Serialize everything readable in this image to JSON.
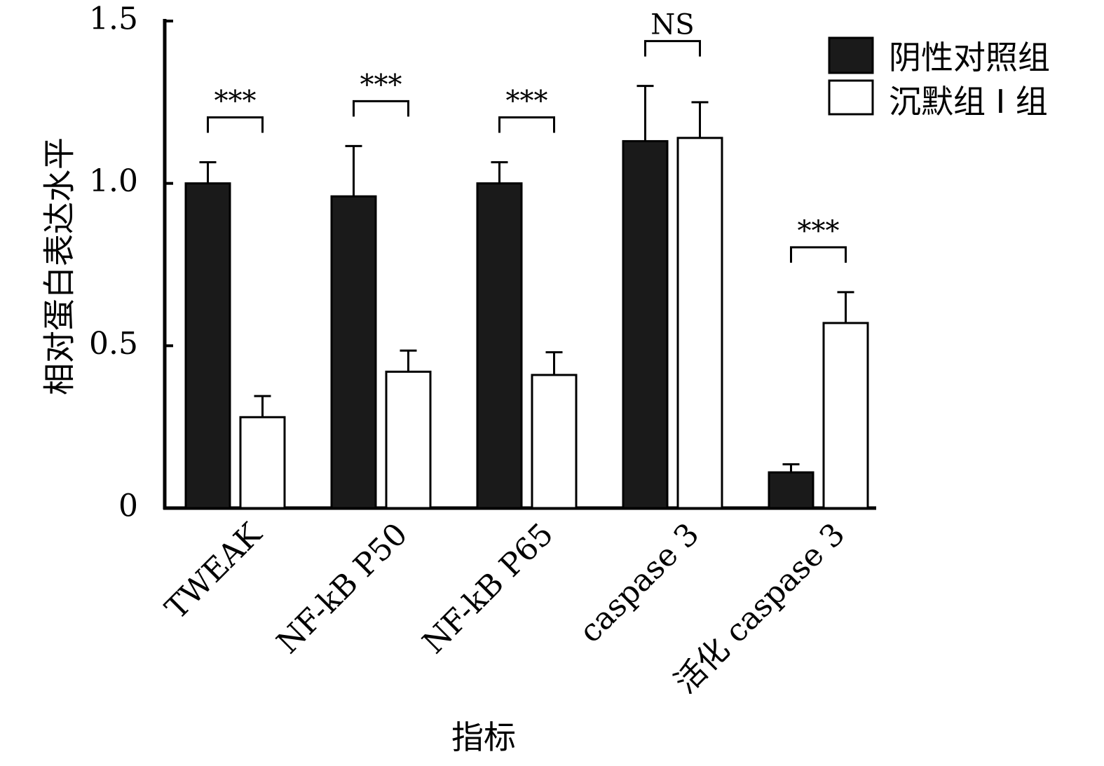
{
  "chart_data": {
    "type": "bar",
    "xlabel": "指标",
    "ylabel": "相对蛋白表达水平",
    "ylim": [
      0,
      1.5
    ],
    "yticks": [
      {
        "value": 0,
        "label": "0"
      },
      {
        "value": 0.5,
        "label": "0.5"
      },
      {
        "value": 1.0,
        "label": "1.0"
      },
      {
        "value": 1.5,
        "label": "1.5"
      }
    ],
    "categories": [
      "TWEAK",
      "NF-kB P50",
      "NF-kB P65",
      "caspase 3",
      "活化 caspase 3"
    ],
    "series": [
      {
        "name": "阴性对照组",
        "color": "#1a1a1a",
        "values": [
          1.0,
          0.96,
          1.0,
          1.13,
          0.11
        ],
        "errors": [
          0.065,
          0.155,
          0.065,
          0.17,
          0.025
        ]
      },
      {
        "name": "沉默组 I 组",
        "color": "#ffffff",
        "values": [
          0.28,
          0.42,
          0.41,
          1.14,
          0.57
        ],
        "errors": [
          0.065,
          0.065,
          0.07,
          0.11,
          0.095
        ]
      }
    ],
    "significance": [
      "***",
      "***",
      "***",
      "NS",
      "***"
    ],
    "legend_position": "top-right",
    "grid": false
  }
}
